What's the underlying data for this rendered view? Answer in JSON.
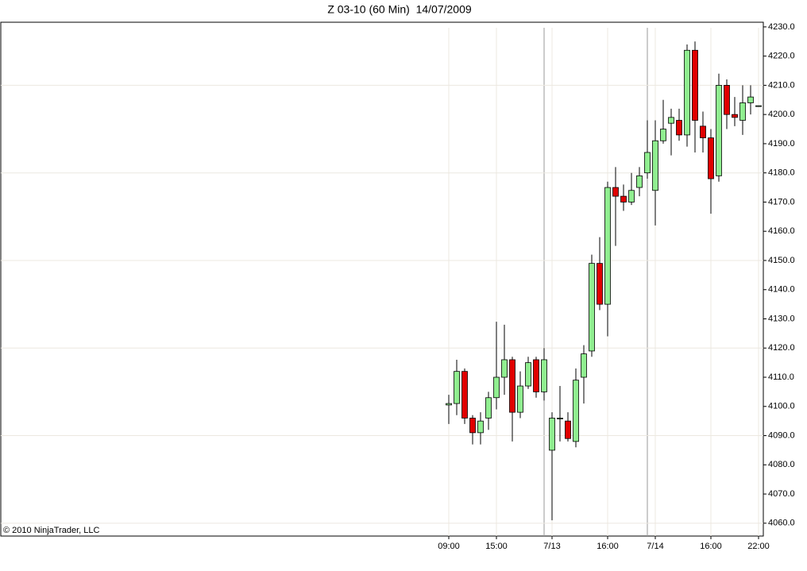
{
  "chart_data": {
    "type": "candlestick",
    "title": "Z 03-10 (60 Min)  14/07/2009",
    "annotation": "© 2010 NinjaTrader, LLC",
    "categories": [
      "09:00",
      null,
      null,
      null,
      null,
      null,
      "15:00",
      null,
      null,
      null,
      null,
      null,
      null,
      "7/13",
      null,
      null,
      null,
      null,
      null,
      null,
      "16:00",
      null,
      null,
      null,
      null,
      null,
      "7/14",
      null,
      null,
      null,
      null,
      null,
      null,
      "16:00",
      null,
      null,
      null,
      null,
      null,
      "22:00"
    ],
    "open": [
      4100.5,
      4101,
      4112,
      4096,
      4091,
      4096,
      4103,
      4110,
      4116,
      4098,
      4107,
      4116,
      4105,
      4085,
      4096,
      4095,
      4088,
      4110,
      4119,
      4149,
      4135,
      4175,
      4172,
      4170,
      4175,
      4180,
      4174,
      4191,
      4197,
      4198,
      4193,
      4222,
      4196,
      4192,
      4179,
      4210,
      4200,
      4198,
      4204,
      4203
    ],
    "high": [
      4104,
      4116,
      4113,
      4097,
      4098,
      4105,
      4129,
      4128,
      4117,
      4112,
      4117,
      4117,
      4120,
      4098,
      4107,
      4098,
      4113,
      4121,
      4152,
      4158,
      4177,
      4182,
      4176,
      4180,
      4182,
      4198,
      4198,
      4205,
      4202,
      4202,
      4224,
      4225,
      4201,
      4195,
      4214,
      4212,
      4206,
      4210,
      4210,
      4203
    ],
    "low": [
      4094,
      4097,
      4094,
      4087,
      4087,
      4092,
      4099,
      4104,
      4088,
      4096,
      4106,
      4103,
      4102,
      4061,
      4088,
      4088,
      4086,
      4101,
      4117,
      4133,
      4124,
      4155,
      4167,
      4169,
      4172,
      4178,
      4162,
      4190,
      4186,
      4191,
      4189,
      4187,
      4187,
      4166,
      4177,
      4195,
      4196,
      4193,
      4200,
      4203
    ],
    "close": [
      4101,
      4112,
      4096,
      4091,
      4095,
      4103,
      4110,
      4116,
      4098,
      4107,
      4115,
      4105,
      4116,
      4096,
      4096,
      4089,
      4109,
      4118,
      4149,
      4135,
      4175,
      4172,
      4170,
      4174,
      4179,
      4187,
      4191,
      4195,
      4199,
      4193,
      4222,
      4198,
      4192,
      4178,
      4210,
      4200,
      4199,
      4204,
      4206,
      4203
    ],
    "up_color": "#90ee90",
    "down_color": "#e00000",
    "ylim": [
      4055.6,
      4231.6
    ],
    "yticks": [
      {
        "value": 4060,
        "label": "4060.0"
      },
      {
        "value": 4070,
        "label": "4070.0"
      },
      {
        "value": 4080,
        "label": "4080.0"
      },
      {
        "value": 4090,
        "label": "4090.0"
      },
      {
        "value": 4100,
        "label": "4100.0"
      },
      {
        "value": 4110,
        "label": "4110.0"
      },
      {
        "value": 4120,
        "label": "4120.0"
      },
      {
        "value": 4130,
        "label": "4130.0"
      },
      {
        "value": 4140,
        "label": "4140.0"
      },
      {
        "value": 4150,
        "label": "4150.0"
      },
      {
        "value": 4160,
        "label": "4160.0"
      },
      {
        "value": 4170,
        "label": "4170.0"
      },
      {
        "value": 4180,
        "label": "4180.0"
      },
      {
        "value": 4190,
        "label": "4190.0"
      },
      {
        "value": 4200,
        "label": "4200.0"
      },
      {
        "value": 4210,
        "label": "4210.0"
      },
      {
        "value": 4220,
        "label": "4220.0"
      },
      {
        "value": 4230,
        "label": "4230.0"
      }
    ],
    "grid": true
  }
}
